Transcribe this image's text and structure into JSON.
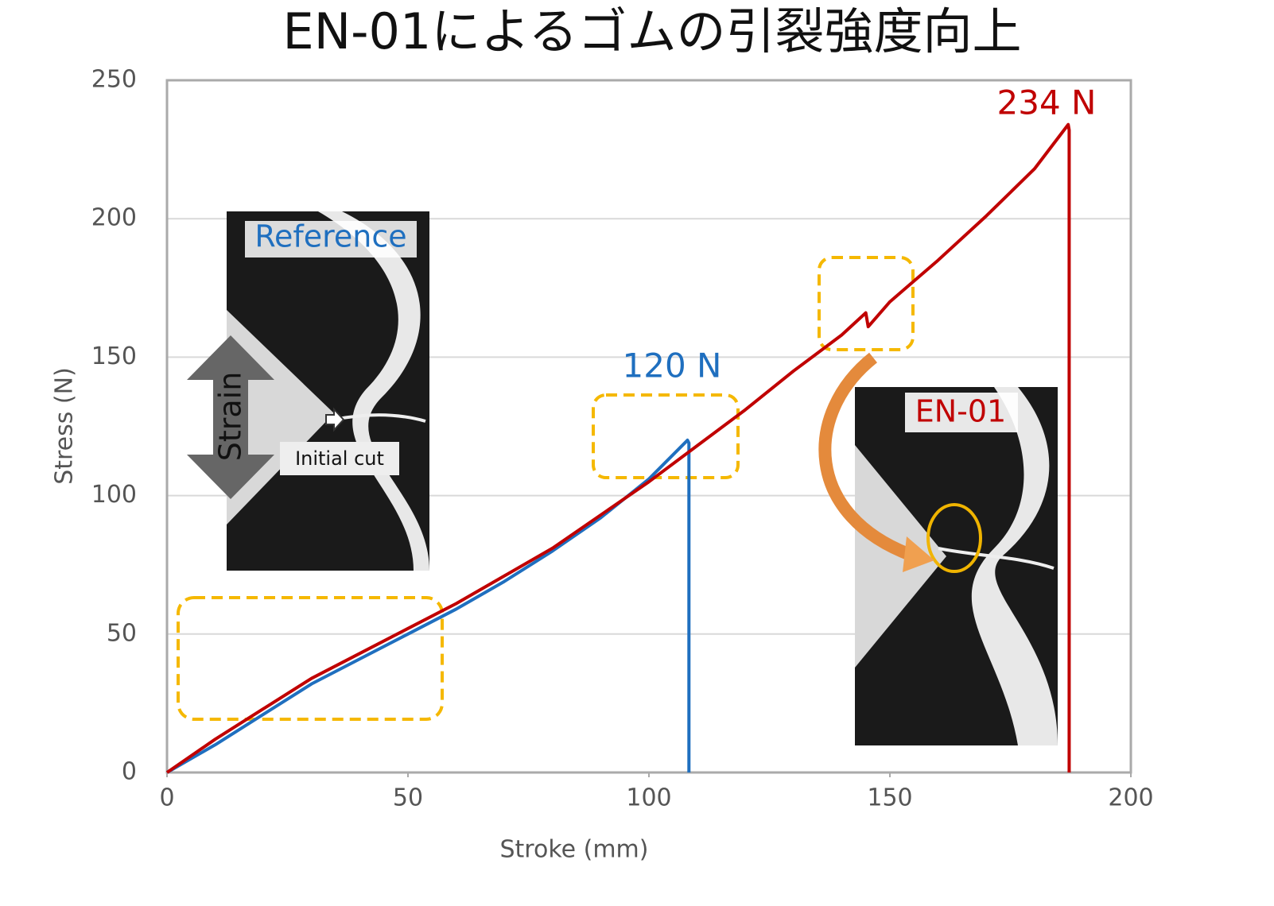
{
  "chart_data": {
    "type": "line",
    "title": "EN-01によるゴムの引裂強度向上",
    "x_label": "Stroke (mm)",
    "y_label": "Stress (N)",
    "xlim": [
      0,
      200
    ],
    "xticks": [
      0,
      50,
      100,
      150,
      200
    ],
    "ylim": [
      0,
      250
    ],
    "yticks": [
      0,
      50,
      100,
      150,
      200,
      250
    ],
    "grid": true,
    "annotations": [
      "120 N",
      "234 N",
      "Reference",
      "EN-01",
      "Strain",
      "Initial cut"
    ],
    "series": [
      {
        "name": "Reference",
        "color": "#1f6fbf",
        "x": [
          0,
          2,
          10,
          20,
          30,
          40,
          50,
          60,
          70,
          80,
          90,
          100,
          108,
          108.3,
          108.3
        ],
        "values": [
          0,
          2,
          10,
          21,
          32,
          41,
          50,
          59,
          69,
          80,
          92,
          106,
          120,
          119,
          0
        ]
      },
      {
        "name": "EN-01",
        "color": "#c00000",
        "x": [
          0,
          10,
          20,
          30,
          40,
          50,
          60,
          70,
          80,
          90,
          100,
          110,
          120,
          130,
          140,
          145,
          145.5,
          150,
          160,
          170,
          180,
          187,
          187.2,
          187.2
        ],
        "values": [
          0,
          12,
          23,
          34,
          43,
          52,
          61,
          71,
          81,
          93,
          105,
          118,
          131,
          145,
          158,
          166,
          161,
          170,
          185,
          201,
          218,
          234,
          232,
          0
        ]
      }
    ]
  }
}
